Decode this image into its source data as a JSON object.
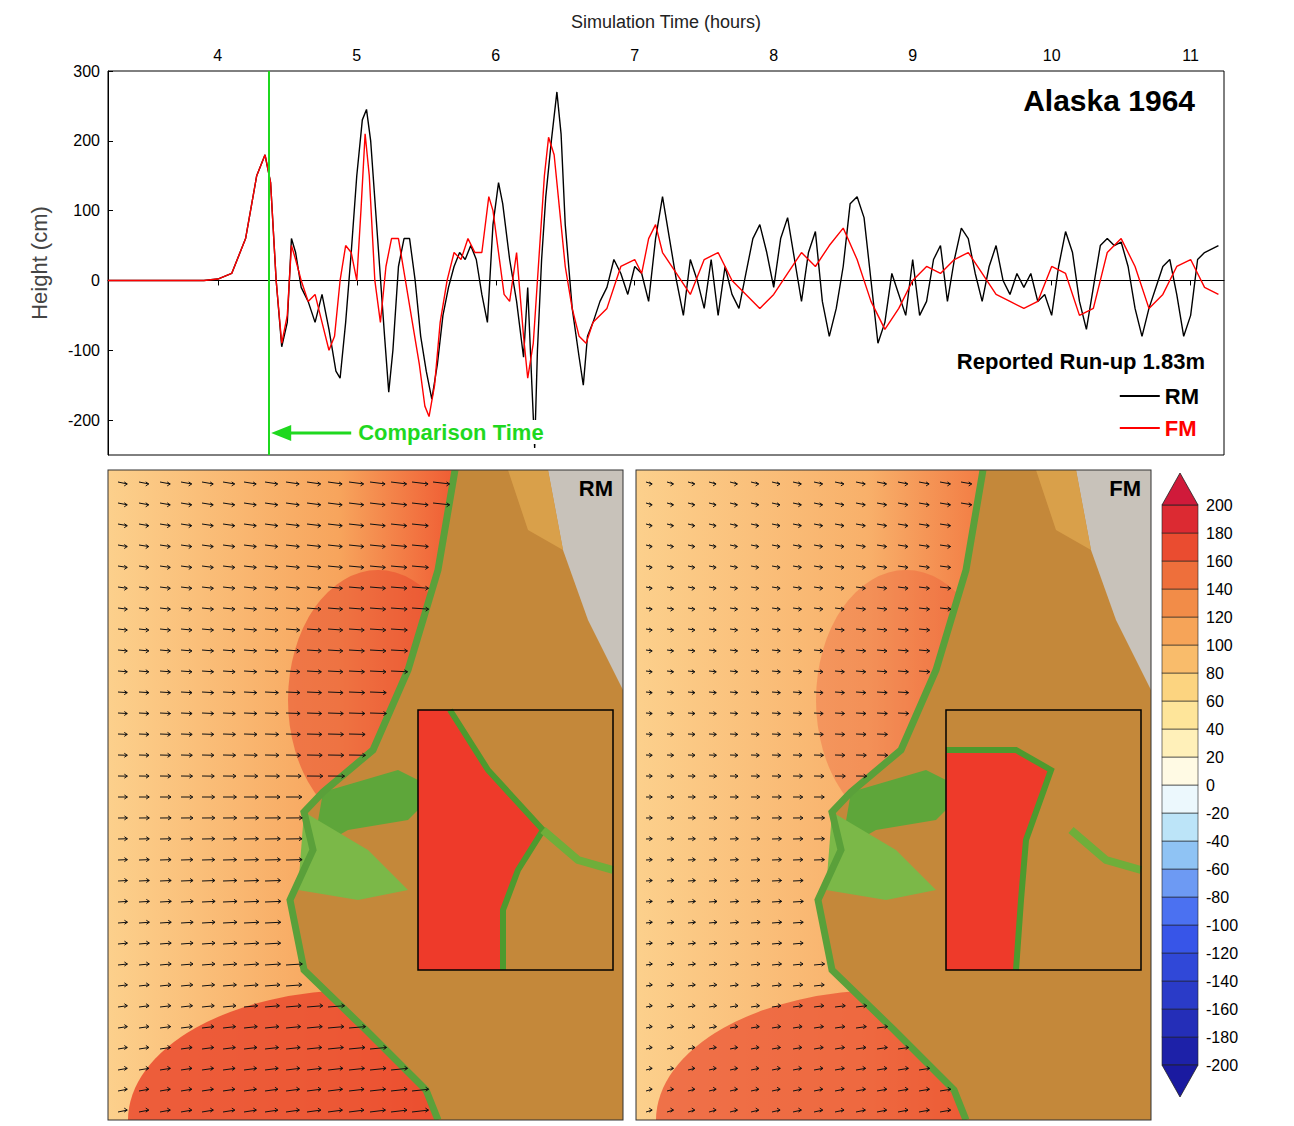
{
  "chart_data": {
    "type": "line",
    "title": "Alaska 1964",
    "x_label": "Simulation Time (hours)",
    "y_label": "Height (cm)",
    "xlim": [
      3.21,
      11.24
    ],
    "xticks": [
      4,
      5,
      6,
      7,
      8,
      9,
      10,
      11
    ],
    "ylim": [
      -250,
      300
    ],
    "yticks": [
      -200,
      -100,
      0,
      100,
      200,
      300
    ],
    "grid": false,
    "legend": "lower right",
    "series": [
      {
        "name": "RM",
        "color": "#000000",
        "x": [
          3.21,
          3.9,
          4.0,
          4.1,
          4.2,
          4.28,
          4.34,
          4.38,
          4.42,
          4.46,
          4.5,
          4.53,
          4.56,
          4.6,
          4.65,
          4.7,
          4.75,
          4.8,
          4.85,
          4.88,
          4.92,
          4.96,
          5.0,
          5.04,
          5.07,
          5.1,
          5.15,
          5.2,
          5.23,
          5.26,
          5.3,
          5.34,
          5.38,
          5.42,
          5.46,
          5.5,
          5.54,
          5.58,
          5.62,
          5.66,
          5.7,
          5.74,
          5.78,
          5.82,
          5.86,
          5.9,
          5.94,
          5.98,
          6.02,
          6.05,
          6.1,
          6.15,
          6.2,
          6.23,
          6.26,
          6.28,
          6.3,
          6.33,
          6.36,
          6.4,
          6.44,
          6.47,
          6.5,
          6.55,
          6.6,
          6.63,
          6.66,
          6.7,
          6.75,
          6.8,
          6.85,
          6.9,
          6.95,
          7.0,
          7.05,
          7.1,
          7.15,
          7.2,
          7.25,
          7.3,
          7.35,
          7.4,
          7.45,
          7.5,
          7.55,
          7.6,
          7.65,
          7.7,
          7.75,
          7.8,
          7.85,
          7.9,
          7.95,
          8.0,
          8.05,
          8.1,
          8.15,
          8.2,
          8.25,
          8.3,
          8.35,
          8.4,
          8.45,
          8.5,
          8.55,
          8.6,
          8.65,
          8.7,
          8.75,
          8.8,
          8.85,
          8.9,
          8.95,
          9.0,
          9.05,
          9.1,
          9.15,
          9.2,
          9.25,
          9.3,
          9.35,
          9.4,
          9.45,
          9.5,
          9.55,
          9.6,
          9.65,
          9.7,
          9.75,
          9.8,
          9.85,
          9.9,
          9.95,
          10.0,
          10.05,
          10.1,
          10.15,
          10.2,
          10.25,
          10.3,
          10.35,
          10.4,
          10.45,
          10.5,
          10.55,
          10.6,
          10.65,
          10.7,
          10.75,
          10.8,
          10.85,
          10.9,
          10.95,
          11.0,
          11.05,
          11.1,
          11.2
        ],
        "values": [
          0,
          0,
          2,
          10,
          60,
          150,
          180,
          140,
          0,
          -95,
          -60,
          60,
          40,
          -10,
          -30,
          -60,
          -20,
          -70,
          -130,
          -140,
          -60,
          40,
          150,
          230,
          245,
          200,
          60,
          -80,
          -160,
          -100,
          20,
          60,
          60,
          0,
          -80,
          -130,
          -170,
          -120,
          -50,
          -10,
          20,
          40,
          30,
          50,
          30,
          -20,
          -60,
          80,
          140,
          110,
          30,
          -30,
          -110,
          -10,
          -150,
          -240,
          -100,
          30,
          120,
          200,
          270,
          210,
          80,
          -40,
          -110,
          -150,
          -80,
          -60,
          -30,
          -10,
          30,
          10,
          -20,
          20,
          10,
          -30,
          60,
          120,
          60,
          0,
          -50,
          30,
          0,
          -40,
          30,
          -50,
          20,
          -20,
          -40,
          10,
          60,
          80,
          40,
          -10,
          60,
          90,
          30,
          -30,
          40,
          70,
          -30,
          -80,
          -40,
          20,
          110,
          120,
          90,
          0,
          -90,
          -60,
          10,
          -20,
          -50,
          30,
          -50,
          -30,
          30,
          50,
          -30,
          30,
          75,
          60,
          10,
          -30,
          20,
          50,
          0,
          -20,
          10,
          -10,
          10,
          -30,
          -20,
          -50,
          20,
          70,
          40,
          -30,
          -70,
          -10,
          50,
          60,
          50,
          55,
          20,
          -40,
          -80,
          -40,
          -10,
          20,
          30,
          -20,
          -80,
          -50,
          30,
          40,
          50
        ]
      },
      {
        "name": "FM",
        "color": "#ff0000",
        "x": [
          3.21,
          3.9,
          4.0,
          4.1,
          4.2,
          4.28,
          4.34,
          4.38,
          4.42,
          4.46,
          4.5,
          4.53,
          4.56,
          4.6,
          4.65,
          4.7,
          4.75,
          4.8,
          4.84,
          4.88,
          4.92,
          4.96,
          5.0,
          5.03,
          5.06,
          5.09,
          5.13,
          5.17,
          5.21,
          5.25,
          5.3,
          5.35,
          5.4,
          5.45,
          5.49,
          5.52,
          5.56,
          5.6,
          5.65,
          5.7,
          5.75,
          5.8,
          5.85,
          5.9,
          5.95,
          5.98,
          6.02,
          6.06,
          6.1,
          6.15,
          6.2,
          6.23,
          6.27,
          6.3,
          6.35,
          6.38,
          6.42,
          6.46,
          6.5,
          6.55,
          6.6,
          6.65,
          6.7,
          6.8,
          6.9,
          7.0,
          7.05,
          7.1,
          7.15,
          7.2,
          7.3,
          7.4,
          7.5,
          7.6,
          7.7,
          7.8,
          7.9,
          8.0,
          8.1,
          8.2,
          8.3,
          8.4,
          8.5,
          8.6,
          8.7,
          8.8,
          8.9,
          9.0,
          9.1,
          9.2,
          9.3,
          9.4,
          9.5,
          9.6,
          9.7,
          9.8,
          9.9,
          10.0,
          10.1,
          10.2,
          10.3,
          10.4,
          10.5,
          10.6,
          10.7,
          10.8,
          10.9,
          11.0,
          11.1,
          11.2
        ],
        "values": [
          0,
          0,
          2,
          10,
          60,
          150,
          180,
          140,
          0,
          -90,
          -50,
          50,
          30,
          0,
          -30,
          -20,
          -60,
          -100,
          -80,
          0,
          50,
          40,
          0,
          100,
          210,
          150,
          0,
          -60,
          20,
          60,
          60,
          0,
          -60,
          -120,
          -180,
          -195,
          -150,
          -60,
          0,
          40,
          30,
          60,
          40,
          40,
          120,
          100,
          40,
          -20,
          -30,
          40,
          -80,
          -140,
          -90,
          0,
          150,
          205,
          180,
          100,
          20,
          -40,
          -80,
          -90,
          -60,
          -40,
          20,
          30,
          10,
          60,
          80,
          40,
          10,
          -20,
          30,
          40,
          0,
          -20,
          -40,
          -20,
          10,
          40,
          20,
          50,
          75,
          30,
          -30,
          -70,
          -40,
          0,
          20,
          10,
          30,
          40,
          10,
          -20,
          -30,
          -40,
          -30,
          20,
          10,
          -50,
          -40,
          40,
          60,
          20,
          -40,
          -20,
          20,
          30,
          -10,
          -20
        ]
      }
    ],
    "annotations": [
      {
        "text": "Comparison Time",
        "x": 4.37,
        "color": "#1fd81f"
      },
      {
        "text": "Reported Run-up 1.83m"
      }
    ]
  },
  "maps": {
    "panels": [
      "RM",
      "FM"
    ],
    "colorbar": {
      "range": [
        -200,
        200
      ],
      "ticks": [
        -200,
        -180,
        -160,
        -140,
        -120,
        -100,
        -80,
        -60,
        -40,
        -20,
        0,
        20,
        40,
        60,
        80,
        100,
        120,
        140,
        160,
        180,
        200
      ]
    }
  }
}
